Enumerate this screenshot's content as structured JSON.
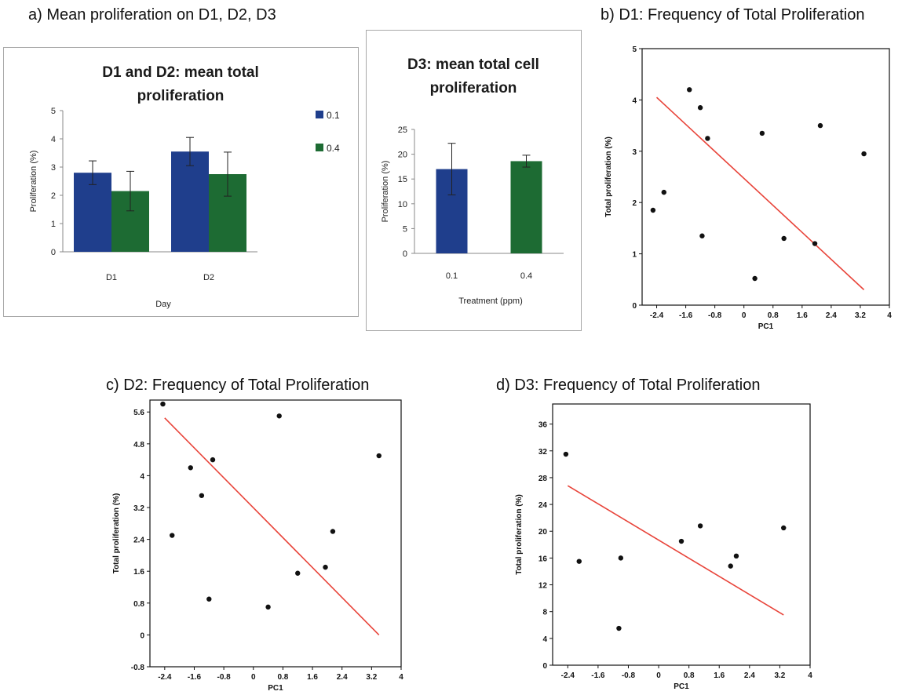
{
  "headings": {
    "a": "a) Mean proliferation on D1, D2, D3",
    "b": "b) D1: Frequency of Total Proliferation",
    "c": "c) D2: Frequency of Total Proliferation",
    "d": "d) D3: Frequency of Total Proliferation"
  },
  "chart_data": [
    {
      "id": "a1",
      "type": "bar",
      "title": "D1 and D2: mean total proliferation",
      "title_lines": [
        "D1 and D2: mean total",
        "proliferation"
      ],
      "xlabel": "Day",
      "ylabel": "Proliferation (%)",
      "ylim": [
        0,
        5
      ],
      "yticks": [
        "0",
        "1",
        "2",
        "3",
        "4",
        "5"
      ],
      "categories": [
        "D1",
        "D2"
      ],
      "legend": "right",
      "series": [
        {
          "name": "0.1",
          "color": "#1f3e8c",
          "values": [
            2.8,
            3.55
          ],
          "err": [
            0.42,
            0.5
          ]
        },
        {
          "name": "0.4",
          "color": "#1d6b33",
          "values": [
            2.15,
            2.75
          ],
          "err": [
            0.7,
            0.78
          ]
        }
      ]
    },
    {
      "id": "a2",
      "type": "bar",
      "title": "D3: mean total cell proliferation",
      "title_lines": [
        "D3: mean total cell",
        "proliferation"
      ],
      "xlabel": "Treatment (ppm)",
      "ylabel": "Proliferation (%)",
      "ylim": [
        0,
        25
      ],
      "yticks": [
        "0",
        "5",
        "10",
        "15",
        "20",
        "25"
      ],
      "categories": [
        "0.1",
        "0.4"
      ],
      "colors": [
        "#1f3e8c",
        "#1d6b33"
      ],
      "values": [
        17,
        18.6
      ],
      "err": [
        5.2,
        1.2
      ]
    },
    {
      "id": "b",
      "type": "scatter",
      "xlabel": "PC1",
      "ylabel": "Total proliferation (%)",
      "xlim": [
        -2.8,
        4
      ],
      "ylim": [
        0,
        5
      ],
      "xticks": [
        "-2.4",
        "-1.6",
        "-0.8",
        "0",
        "0.8",
        "1.6",
        "2.4",
        "3.2",
        "4"
      ],
      "yticks": [
        "0",
        "1",
        "2",
        "3",
        "4",
        "5"
      ],
      "x": [
        -2.5,
        -2.2,
        -1.5,
        -1.2,
        -1.0,
        -1.15,
        0.5,
        1.1,
        1.95,
        2.1,
        3.3,
        0.3
      ],
      "y": [
        1.85,
        2.2,
        4.2,
        3.85,
        3.25,
        1.35,
        3.35,
        1.3,
        1.2,
        3.5,
        2.95,
        0.52
      ],
      "fit": {
        "x": [
          -2.4,
          3.3
        ],
        "y": [
          4.05,
          0.3
        ],
        "color": "#e8443a"
      }
    },
    {
      "id": "c",
      "type": "scatter",
      "xlabel": "PC1",
      "ylabel": "Total proliferation (%)",
      "xlim": [
        -2.8,
        4
      ],
      "ylim": [
        -0.8,
        5.9
      ],
      "xticks": [
        "-2.4",
        "-1.6",
        "-0.8",
        "0",
        "0.8",
        "1.6",
        "2.4",
        "3.2",
        "4"
      ],
      "yticks": [
        "-0.8",
        "0",
        "0.8",
        "1.6",
        "2.4",
        "3.2",
        "4",
        "4.8",
        "5.6"
      ],
      "x": [
        -2.45,
        -2.2,
        -1.7,
        -1.4,
        -1.1,
        -1.2,
        0.4,
        0.7,
        1.2,
        1.95,
        2.15,
        3.4
      ],
      "y": [
        5.8,
        2.5,
        4.2,
        3.5,
        4.4,
        0.9,
        0.7,
        5.5,
        1.55,
        1.7,
        2.6,
        4.5
      ],
      "fit": {
        "x": [
          -2.4,
          3.4
        ],
        "y": [
          5.45,
          0.0
        ],
        "color": "#e8443a"
      }
    },
    {
      "id": "d",
      "type": "scatter",
      "xlabel": "PC1",
      "ylabel": "Total proliferation (%)",
      "xlim": [
        -2.8,
        4
      ],
      "ylim": [
        0,
        39
      ],
      "xticks": [
        "-2.4",
        "-1.6",
        "-0.8",
        "0",
        "0.8",
        "1.6",
        "2.4",
        "3.2",
        "4"
      ],
      "yticks": [
        "0",
        "4",
        "8",
        "12",
        "16",
        "20",
        "24",
        "28",
        "32",
        "36"
      ],
      "x": [
        -2.45,
        -2.1,
        -1.0,
        -1.05,
        0.6,
        1.1,
        1.9,
        2.05,
        3.3
      ],
      "y": [
        31.5,
        15.5,
        16,
        5.5,
        18.5,
        20.8,
        14.8,
        16.3,
        20.5
      ],
      "fit": {
        "x": [
          -2.4,
          3.3
        ],
        "y": [
          26.8,
          7.5
        ],
        "color": "#e8443a"
      }
    }
  ]
}
